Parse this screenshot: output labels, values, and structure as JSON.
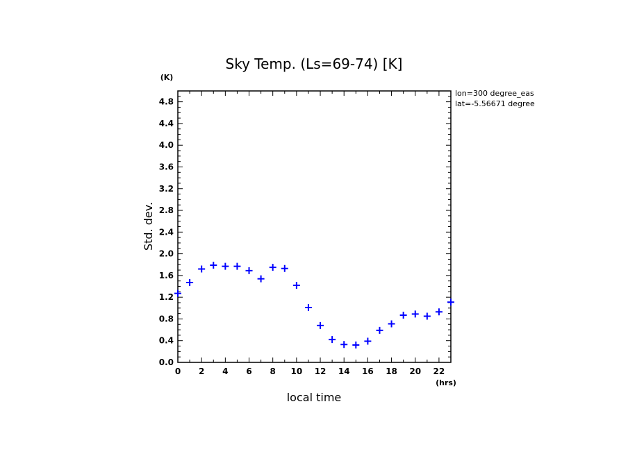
{
  "chart_data": {
    "type": "scatter",
    "title": "Sky Temp. (Ls=69-74) [K]",
    "xlabel": "local time",
    "ylabel": "Std. dev.",
    "x_unit": "(hrs)",
    "y_unit": "(K)",
    "xlim": [
      0,
      23
    ],
    "ylim": [
      0,
      5
    ],
    "x_ticks": [
      "0",
      "2",
      "4",
      "6",
      "8",
      "10",
      "12",
      "14",
      "16",
      "18",
      "20",
      "22"
    ],
    "y_ticks": [
      "0.0",
      "0.4",
      "0.8",
      "1.2",
      "1.6",
      "2.0",
      "2.4",
      "2.8",
      "3.2",
      "3.6",
      "4.0",
      "4.4",
      "4.8"
    ],
    "annotations": [
      "lon=300 degree_eas",
      "lat=-5.56671 degree"
    ],
    "marker_color": "#0000ff",
    "series": [
      {
        "x": [
          0,
          1,
          2,
          3,
          4,
          5,
          6,
          7,
          8,
          9,
          10,
          11,
          12,
          13,
          14,
          15,
          16,
          17,
          18,
          19,
          20,
          21,
          22,
          23
        ],
        "y": [
          1.27,
          1.47,
          1.72,
          1.79,
          1.77,
          1.77,
          1.69,
          1.54,
          1.75,
          1.73,
          1.42,
          1.01,
          0.68,
          0.42,
          0.33,
          0.32,
          0.39,
          0.59,
          0.71,
          0.87,
          0.89,
          0.85,
          0.93,
          1.11
        ]
      }
    ]
  }
}
